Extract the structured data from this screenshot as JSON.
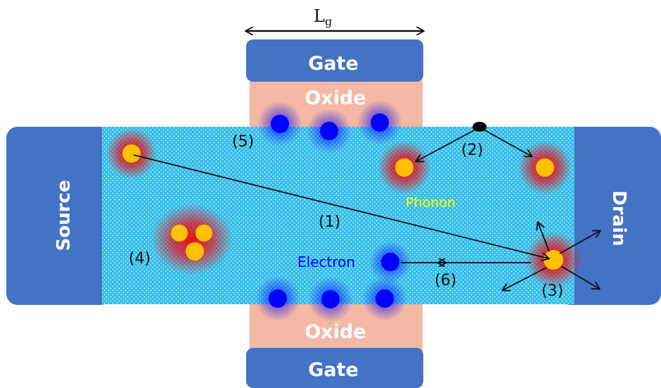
{
  "gate_length": {
    "letter": "L",
    "subscript": "g"
  },
  "gate_top": "Gate",
  "gate_bottom": "Gate",
  "oxide_top": "Oxide",
  "oxide_bottom": "Oxide",
  "source": "Source",
  "drain": "Drain",
  "phonon_label": "Phonon",
  "electron_label": "Electron",
  "markers": {
    "m1": "(1)",
    "m2": "(2)",
    "m3": "(3)",
    "m4": "(4)",
    "m5": "(5)",
    "m6": "(6)"
  },
  "colors": {
    "electrode": "#4472c4",
    "oxide": "#f4b8a4",
    "channel": "#33bde8",
    "electron": "#0000ff",
    "phonon_core": "#ffc000",
    "phonon_glow": "#e8121a",
    "phonon_text": "#ffff00",
    "electron_text": "#0000ff"
  }
}
